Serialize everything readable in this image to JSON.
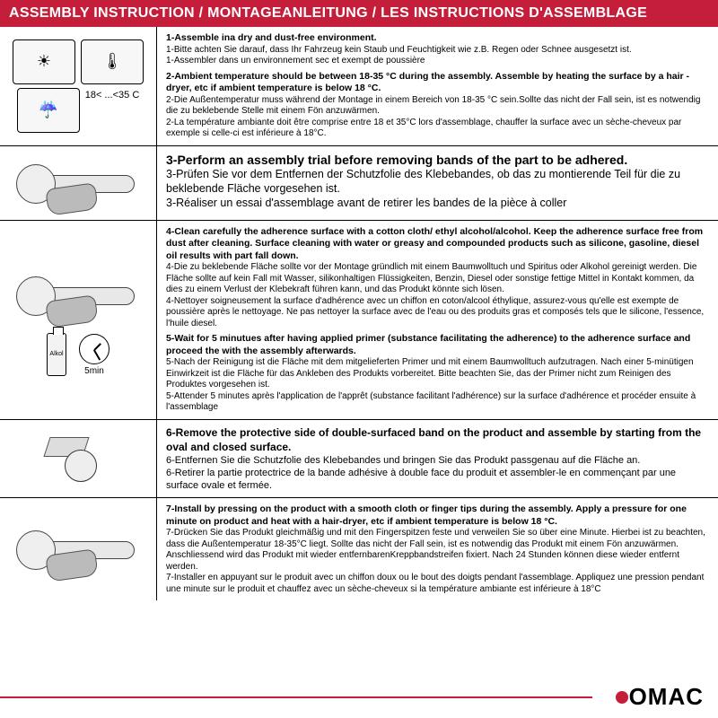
{
  "colors": {
    "accent": "#c41e3a",
    "text": "#000000",
    "bg": "#ffffff"
  },
  "header": "ASSEMBLY INSTRUCTION / MONTAGEANLEITUNG / LES INSTRUCTIONS D'ASSEMBLAGE",
  "temp_range": "18< ...<35 C",
  "timer_label": "5min",
  "bottle_label": "Alkol",
  "brand": "OMAC",
  "rows": [
    {
      "steps": [
        {
          "lead": "1-Assemble ina dry and dust-free environment.",
          "subs": [
            "1-Bitte achten Sie darauf, dass Ihr Fahrzeug kein Staub und Feuchtigkeit wie z.B. Regen oder Schnee ausgesetzt ist.",
            "1-Assembler dans un environnement sec et exempt de poussière"
          ]
        },
        {
          "lead": "2-Ambient temperature should be between 18-35 °C  during the assembly. Assemble by heating the surface by a hair -dryer, etc if ambient temperature is below 18 °C.",
          "subs": [
            "2-Die Außentemperatur muss während der Montage in einem Bereich von 18-35 °C  sein.Sollte das nicht der Fall sein, ist es notwendig die zu beklebende Stelle mit einem Fön anzuwärmen.",
            "2-La température ambiante doit être comprise entre 18 et 35°C lors d'assemblage, chauffer la surface avec un sèche-cheveux par exemple si celle-ci est inférieure à 18°C."
          ]
        }
      ]
    },
    {
      "steps": [
        {
          "lead": "3-Perform an assembly trial before removing bands of the part to be adhered.",
          "subs": [
            "3-Prüfen Sie vor dem Entfernen der Schutzfolie des Klebebandes, ob das zu montierende Teil für die zu beklebende Fläche vorgesehen ist.",
            "3-Réaliser un essai d'assemblage avant de retirer les bandes de la pièce à coller"
          ]
        }
      ]
    },
    {
      "steps": [
        {
          "lead": "4-Clean carefully the adherence surface with a cotton cloth/ ethyl alcohol/alcohol. Keep the adherence surface free from dust after cleaning. Surface cleaning with water or greasy and compounded products such as silicone, gasoline, diesel oil results with part fall down.",
          "subs": [
            "4-Die zu beklebende Fläche sollte vor der Montage gründlich mit einem Baumwolltuch und Spiritus oder Alkohol gereinigt werden. Die Fläche sollte auf kein Fall mit Wasser, silikonhaltigen Flüssigkeiten, Benzin, Diesel oder sonstige fettige Mittel in Kontakt kommen, da dies zu einem Verlust der Klebekraft führen kann, und das Produkt könnte sich lösen.",
            "4-Nettoyer soigneusement la surface d'adhérence avec un chiffon en coton/alcool éthylique, assurez-vous qu'elle est exempte de poussière après le nettoyage. Ne pas nettoyer la surface avec de l'eau ou des produits gras et composés tels que le silicone, l'essence, l'huile diesel."
          ]
        },
        {
          "lead": "5-Wait for 5 minutues after having applied primer (substance facilitating the adherence) to the adherence surface and proceed the with the assembly afterwards.",
          "subs": [
            "5-Nach der Reinigung ist die Fläche mit dem mitgelieferten Primer und mit einem Baumwolltuch aufzutragen. Nach einer 5-minütigen Einwirkzeit ist die Fläche für das Ankleben des Produkts vorbereitet. Bitte beachten Sie, das der Primer nicht zum Reinigen des Produktes vorgesehen ist.",
            "5-Attender 5 minutes après l'application de l'apprêt (substance facilitant l'adhérence) sur la surface d'adhérence et procéder ensuite à l'assemblage"
          ]
        }
      ]
    },
    {
      "steps": [
        {
          "lead": "6-Remove the protective side of double-surfaced band on the product and assemble by starting from the oval and closed surface.",
          "subs": [
            "6-Entfernen Sie die Schutzfolie des Klebebandes und bringen Sie das Produkt passgenau auf die Fläche an.",
            "6-Retirer la partie protectrice de la bande adhésive à double face du produit et assembler-le en commençant par une surface ovale et fermée."
          ]
        }
      ]
    },
    {
      "steps": [
        {
          "lead": "7-Install by pressing on the product with a smooth cloth or finger tips during the assembly. Apply a pressure for one minute on product and heat with a hair-dryer, etc if ambient temperature is below 18 °C.",
          "subs": [
            "7-Drücken Sie das Produkt gleichmäßig und mit den Fingerspitzen feste und verweilen Sie so über eine Minute. Hierbei ist zu beachten, dass die Außentemperatur 18-35°C liegt. Sollte das nicht der Fall sein, ist es notwendig das Produkt mit einem Fön anzuwärmen. Anschliessend wird das Produkt mit wieder entfernbarenKreppbandstreifen fixiert. Nach 24 Stunden können diese wieder entfernt werden.",
            "7-Installer en appuyant sur le produit avec un chiffon doux ou le bout des doigts pendant l'assemblage. Appliquez une pression pendant une minute sur le produit et chauffez avec un sèche-cheveux si la température ambiante est inférieure à 18°C"
          ]
        }
      ]
    }
  ]
}
